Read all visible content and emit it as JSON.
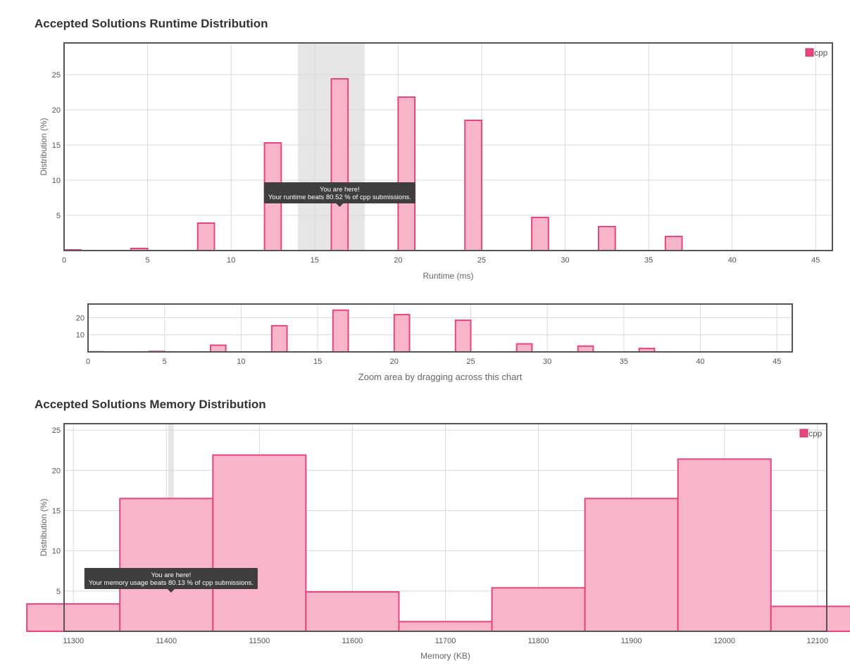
{
  "runtime_section": {
    "title": "Accepted Solutions Runtime Distribution"
  },
  "memory_section": {
    "title": "Accepted Solutions Memory Distribution"
  },
  "zoom_hint": "Zoom area by dragging across this chart",
  "colors": {
    "bar_fill": "#f8b4c8",
    "bar_stroke": "#e8457a",
    "legend": "#e8457a",
    "highlight": "#e6e6e6",
    "tooltip": "#3e3e3e"
  },
  "chart_data": [
    {
      "id": "runtime",
      "type": "bar",
      "xlabel": "Runtime (ms)",
      "ylabel": "Distribution (%)",
      "xlim": [
        0,
        46
      ],
      "ylim": [
        0,
        29.5
      ],
      "xticks": [
        0,
        5,
        10,
        15,
        20,
        25,
        30,
        35,
        40,
        45
      ],
      "yticks": [
        5,
        10,
        15,
        20,
        25
      ],
      "bar_width": 1,
      "series": [
        {
          "name": "cpp",
          "x": [
            0.5,
            4.5,
            8.5,
            12.5,
            16.5,
            20.5,
            24.5,
            28.5,
            32.5,
            36.5
          ],
          "values": [
            0.1,
            0.3,
            3.9,
            15.3,
            24.4,
            21.8,
            18.5,
            4.7,
            3.4,
            2.0
          ]
        }
      ],
      "highlight_range": [
        14,
        18
      ],
      "legend": "top-right",
      "grid": true,
      "tooltip": {
        "line1": "You are here!",
        "line2": "Your runtime beats 80.52 % of cpp submissions.",
        "x": 16.5
      }
    },
    {
      "id": "runtime_overview",
      "type": "bar",
      "xlim": [
        0,
        46
      ],
      "ylim": [
        0,
        28
      ],
      "xticks": [
        0,
        5,
        10,
        15,
        20,
        25,
        30,
        35,
        40,
        45
      ],
      "yticks": [
        10,
        20
      ],
      "bar_width": 1,
      "series": [
        {
          "name": "cpp",
          "x": [
            0.5,
            4.5,
            8.5,
            12.5,
            16.5,
            20.5,
            24.5,
            28.5,
            32.5,
            36.5
          ],
          "values": [
            0.1,
            0.3,
            3.9,
            15.3,
            24.4,
            21.8,
            18.5,
            4.7,
            3.4,
            2.0
          ]
        }
      ],
      "grid": true
    },
    {
      "id": "memory",
      "type": "bar",
      "xlabel": "Memory (KB)",
      "ylabel": "Distribution (%)",
      "xlim": [
        11290,
        12110
      ],
      "ylim": [
        0,
        25.8
      ],
      "xticks": [
        11300,
        11400,
        11500,
        11600,
        11700,
        11800,
        11900,
        12000,
        12100
      ],
      "yticks": [
        5,
        10,
        15,
        20,
        25
      ],
      "bar_width": 100,
      "series": [
        {
          "name": "cpp",
          "x": [
            11300,
            11400,
            11500,
            11600,
            11700,
            11800,
            11900,
            12000,
            12100
          ],
          "values": [
            3.4,
            16.5,
            21.9,
            4.9,
            1.2,
            5.4,
            16.5,
            21.4,
            3.1
          ]
        }
      ],
      "highlight_range": [
        11402,
        11408
      ],
      "legend": "top-right",
      "grid": true,
      "tooltip": {
        "line1": "You are here!",
        "line2": "Your memory usage beats 80.13 % of cpp submissions.",
        "x": 11405
      }
    }
  ]
}
